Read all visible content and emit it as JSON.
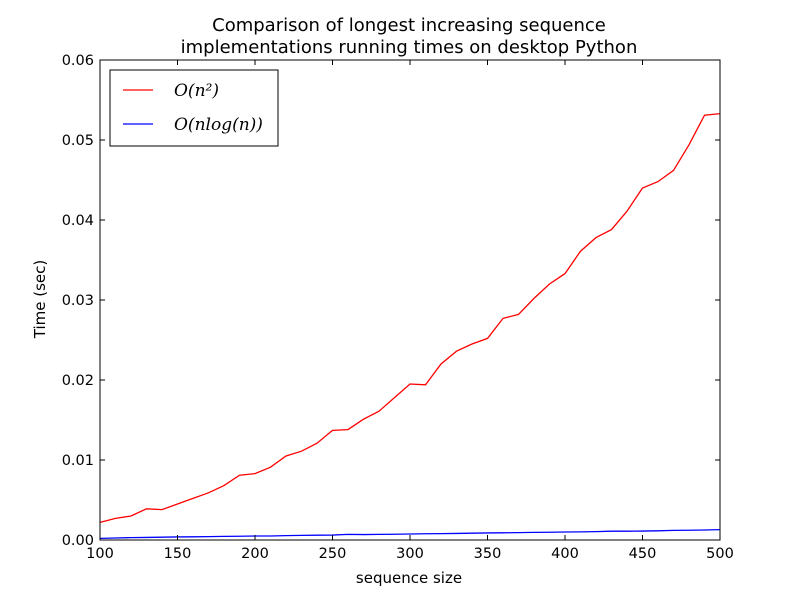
{
  "chart_data": {
    "type": "line",
    "title_lines": [
      "Comparison of longest increasing sequence",
      "implementations running times on desktop Python"
    ],
    "xlabel": "sequence size",
    "ylabel": "Time (sec)",
    "xlim": [
      100,
      500
    ],
    "ylim": [
      0,
      0.06
    ],
    "xticks": [
      100,
      150,
      200,
      250,
      300,
      350,
      400,
      450,
      500
    ],
    "xtick_labels": [
      "100",
      "150",
      "200",
      "250",
      "300",
      "350",
      "400",
      "450",
      "500"
    ],
    "yticks": [
      0,
      0.01,
      0.02,
      0.03,
      0.04,
      0.05,
      0.06
    ],
    "ytick_labels": [
      "0.00",
      "0.01",
      "0.02",
      "0.03",
      "0.04",
      "0.05",
      "0.06"
    ],
    "grid": false,
    "legend_position": "top-left",
    "x": [
      100,
      110,
      120,
      130,
      140,
      150,
      160,
      170,
      180,
      190,
      200,
      210,
      220,
      230,
      240,
      250,
      260,
      270,
      280,
      290,
      300,
      310,
      320,
      330,
      340,
      350,
      360,
      370,
      380,
      390,
      400,
      410,
      420,
      430,
      440,
      450,
      460,
      470,
      480,
      490,
      500
    ],
    "series": [
      {
        "name": "O(n²)",
        "color": "#ff0000",
        "values": [
          0.0022,
          0.0027,
          0.003,
          0.0039,
          0.0038,
          0.0045,
          0.0052,
          0.0059,
          0.0068,
          0.0081,
          0.0083,
          0.0091,
          0.0105,
          0.0111,
          0.0121,
          0.0137,
          0.0138,
          0.0151,
          0.0161,
          0.0178,
          0.0195,
          0.0194,
          0.022,
          0.0236,
          0.0245,
          0.0252,
          0.0277,
          0.0282,
          0.0302,
          0.032,
          0.0333,
          0.0361,
          0.0378,
          0.0388,
          0.0411,
          0.044,
          0.0448,
          0.0462,
          0.0494,
          0.0531,
          0.0533
        ]
      },
      {
        "name": "O(nlog(n))",
        "color": "#0000ff",
        "values": [
          0.0002,
          0.00025,
          0.0003,
          0.00032,
          0.00035,
          0.00038,
          0.0004,
          0.00042,
          0.00045,
          0.00047,
          0.0005,
          0.0005,
          0.00055,
          0.00058,
          0.0006,
          0.00062,
          0.0007,
          0.00068,
          0.0007,
          0.00072,
          0.00075,
          0.00078,
          0.0008,
          0.00082,
          0.00085,
          0.00088,
          0.0009,
          0.00092,
          0.00095,
          0.00097,
          0.001,
          0.00102,
          0.00105,
          0.0011,
          0.0011,
          0.00112,
          0.00115,
          0.0012,
          0.00122,
          0.00125,
          0.0013
        ]
      }
    ]
  }
}
